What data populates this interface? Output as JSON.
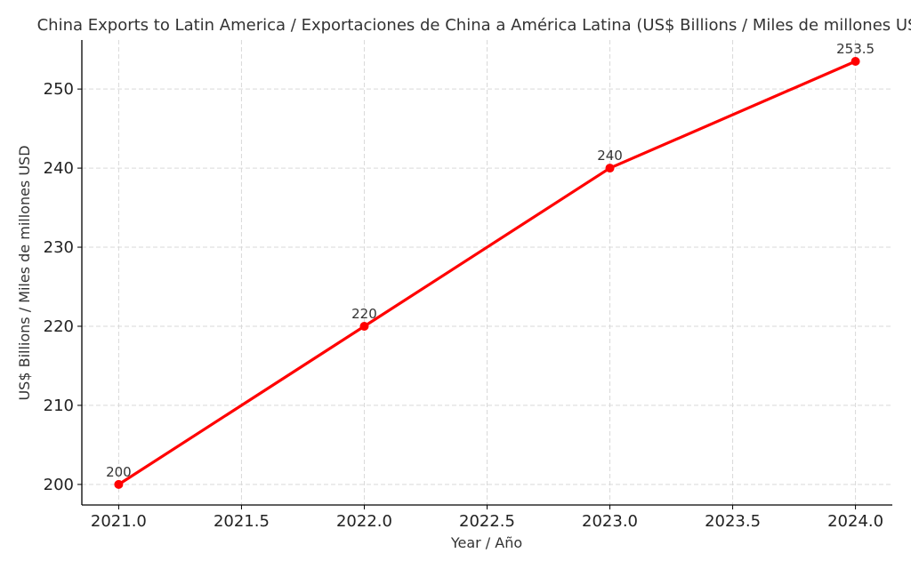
{
  "chart_data": {
    "type": "line",
    "title": "China Exports to Latin America / Exportaciones de China a América Latina (US$ Billions / Miles de millones USD)",
    "xlabel": "Year / Año",
    "ylabel": "US$ Billions / Miles de millones USD",
    "x": [
      2021,
      2022,
      2023,
      2024
    ],
    "values": [
      200,
      220,
      240,
      253.5
    ],
    "data_labels": [
      "200",
      "220",
      "240",
      "253.5"
    ],
    "xlim": [
      2020.85,
      2024.15
    ],
    "ylim": [
      197.4,
      256.2
    ],
    "x_ticks": [
      "2021.0",
      "2021.5",
      "2022.0",
      "2022.5",
      "2023.0",
      "2023.5",
      "2024.0"
    ],
    "y_ticks": [
      "200",
      "210",
      "220",
      "230",
      "240",
      "250"
    ],
    "grid": true,
    "color": "#ff0000",
    "marker": "circle"
  }
}
